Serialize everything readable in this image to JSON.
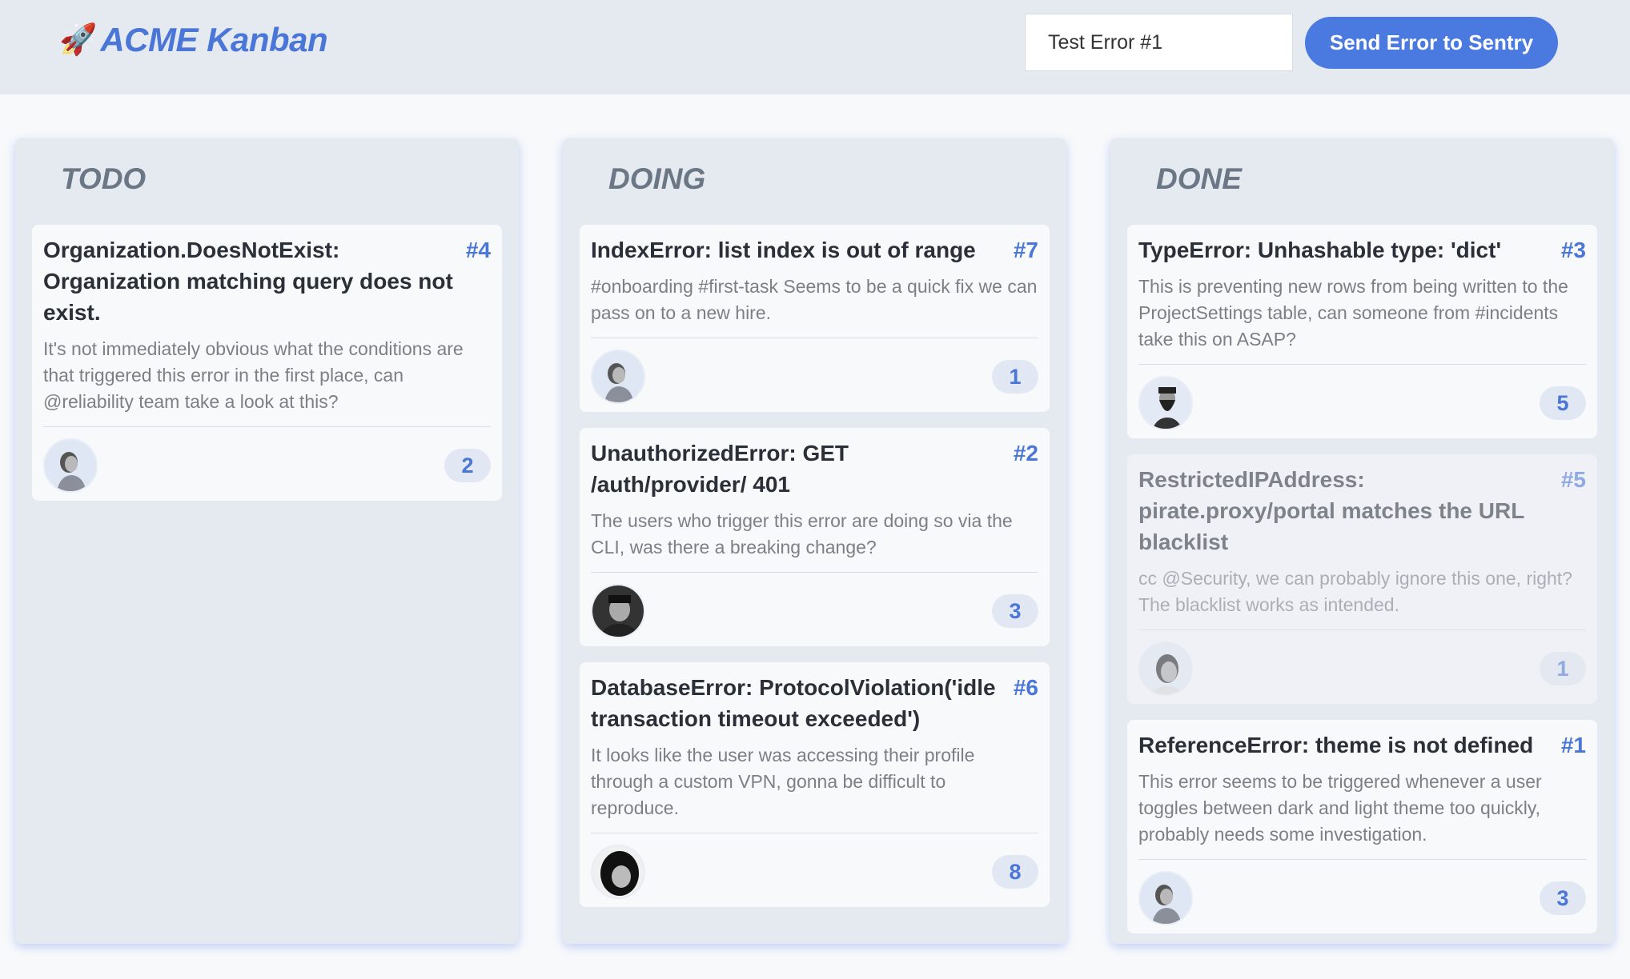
{
  "header": {
    "logo_icon": "rocket-icon",
    "title": "ACME Kanban",
    "error_input_value": "Test Error #1",
    "send_button": "Send Error to Sentry"
  },
  "colors": {
    "accent": "#4a76d8",
    "button": "#4a7ae0",
    "column_bg": "#e5e9f0"
  },
  "columns": [
    {
      "title": "TODO",
      "cards": [
        {
          "title": "Organization.DoesNotExist: Organization matching query does not exist.",
          "number": "#4",
          "description": "It's not immediately obvious what the conditions are that triggered this error in the first place, can @reliability team take a look at this?",
          "count": "2",
          "avatar": "woman",
          "faded": false
        }
      ]
    },
    {
      "title": "DOING",
      "cards": [
        {
          "title": "IndexError: list index is out of range",
          "number": "#7",
          "description": "#onboarding #first-task Seems to be a quick fix we can pass on to a new hire.",
          "count": "1",
          "avatar": "woman",
          "faded": false
        },
        {
          "title": "UnauthorizedError: GET /auth/provider/ 401",
          "number": "#2",
          "description": "The users who trigger this error are doing so via the CLI, was there a breaking change?",
          "count": "3",
          "avatar": "man-cap",
          "faded": false
        },
        {
          "title": "DatabaseError: ProtocolViolation('idle transaction timeout exceeded')",
          "number": "#6",
          "description": "It looks like the user was accessing their profile through a custom VPN, gonna be difficult to reproduce.",
          "count": "8",
          "avatar": "man-dark",
          "faded": false
        }
      ]
    },
    {
      "title": "DONE",
      "cards": [
        {
          "title": "TypeError: Unhashable type: 'dict'",
          "number": "#3",
          "description": "This is preventing new rows from being written to the ProjectSettings table, can someone from #incidents take this on ASAP?",
          "count": "5",
          "avatar": "man-beard",
          "faded": false
        },
        {
          "title": "RestrictedIPAddress: pirate.proxy/portal matches the URL blacklist",
          "number": "#5",
          "description": "cc @Security, we can probably ignore this one, right? The blacklist works as intended.",
          "count": "1",
          "avatar": "man-hat",
          "faded": true
        },
        {
          "title": "ReferenceError: theme is not defined",
          "number": "#1",
          "description": "This error seems to be triggered whenever a user toggles between dark and light theme too quickly, probably needs some investigation.",
          "count": "3",
          "avatar": "woman",
          "faded": false
        }
      ]
    }
  ]
}
